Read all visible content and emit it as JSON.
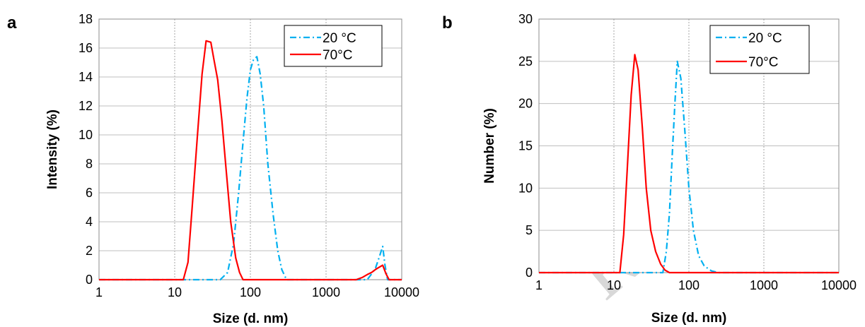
{
  "chart_data": [
    {
      "type": "line",
      "panel_label": "a",
      "xlabel": "Size (d. nm)",
      "ylabel": "Intensity (%)",
      "x_scale": "log",
      "xlim": [
        1,
        10000
      ],
      "ylim": [
        0,
        18
      ],
      "x_ticks": [
        1,
        10,
        100,
        1000,
        10000
      ],
      "x_tick_labels": [
        "1",
        "10",
        "100",
        "1000",
        "10000"
      ],
      "y_ticks": [
        0,
        2,
        4,
        6,
        8,
        10,
        12,
        14,
        16,
        18
      ],
      "y_tick_labels": [
        "0",
        "2",
        "4",
        "6",
        "8",
        "10",
        "12",
        "14",
        "16",
        "18"
      ],
      "grid": true,
      "legend_position": "top-right",
      "series": [
        {
          "name": "20 °C",
          "color": "#00b0f0",
          "dash": "dash-dot",
          "x": [
            1,
            40,
            50,
            60,
            70,
            80,
            90,
            100,
            110,
            122,
            135,
            150,
            170,
            200,
            230,
            260,
            300,
            3500,
            4000,
            4500,
            5000,
            5600,
            6000,
            6500,
            10000
          ],
          "y": [
            0,
            0,
            0.5,
            2.5,
            6,
            9.5,
            12.5,
            14.5,
            15.2,
            15.4,
            14.2,
            12,
            8,
            4.5,
            2,
            0.7,
            0,
            0,
            0.4,
            0.8,
            1.5,
            2.3,
            1,
            0,
            0
          ]
        },
        {
          "name": "70°C",
          "color": "#ff0000",
          "dash": "solid",
          "x": [
            1,
            13,
            15,
            17,
            20,
            23,
            26,
            30,
            33,
            37,
            42,
            48,
            55,
            64,
            72,
            80,
            2500,
            3000,
            3500,
            4000,
            4500,
            5000,
            5600,
            6200,
            6800,
            10000
          ],
          "y": [
            0,
            0,
            1.2,
            5,
            10,
            14.2,
            16.5,
            16.4,
            15.2,
            13.8,
            11,
            7.5,
            4,
            1.5,
            0.5,
            0,
            0,
            0.15,
            0.35,
            0.5,
            0.7,
            0.85,
            1,
            0.4,
            0,
            0
          ]
        }
      ]
    },
    {
      "type": "line",
      "panel_label": "b",
      "xlabel": "Size (d. nm)",
      "ylabel": "Number (%)",
      "x_scale": "log",
      "xlim": [
        1,
        10000
      ],
      "ylim": [
        0,
        30
      ],
      "x_ticks": [
        1,
        10,
        100,
        1000,
        10000
      ],
      "x_tick_labels": [
        "1",
        "10",
        "100",
        "1000",
        "10000"
      ],
      "y_ticks": [
        0,
        5,
        10,
        15,
        20,
        25,
        30
      ],
      "y_tick_labels": [
        "0",
        "5",
        "10",
        "15",
        "20",
        "25",
        "30"
      ],
      "grid": true,
      "legend_position": "top-right",
      "series": [
        {
          "name": "20 °C",
          "color": "#00b0f0",
          "dash": "dash-dot",
          "x": [
            1,
            45,
            50,
            55,
            60,
            65,
            70,
            78,
            88,
            100,
            115,
            135,
            160,
            200,
            250,
            10000
          ],
          "y": [
            0,
            0,
            2.5,
            7,
            14,
            20,
            25,
            23,
            17,
            10,
            5,
            2,
            0.8,
            0.2,
            0,
            0
          ]
        },
        {
          "name": "70°C",
          "color": "#ff0000",
          "dash": "solid",
          "x": [
            1,
            12,
            13.5,
            15,
            17,
            19,
            21,
            24,
            27,
            31,
            36,
            42,
            48,
            55,
            10000
          ],
          "y": [
            0,
            0,
            4.5,
            12,
            21,
            25.8,
            24,
            17,
            10,
            5,
            2.5,
            1,
            0.3,
            0,
            0
          ]
        }
      ]
    }
  ],
  "watermark": "RIPT"
}
